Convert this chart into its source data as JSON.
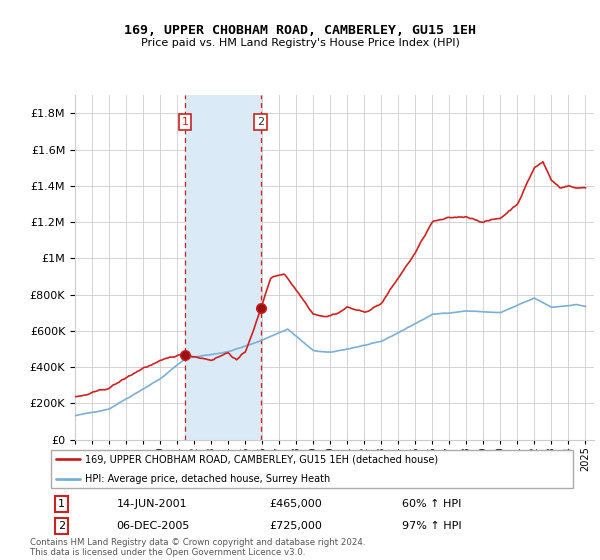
{
  "title": "169, UPPER CHOBHAM ROAD, CAMBERLEY, GU15 1EH",
  "subtitle": "Price paid vs. HM Land Registry's House Price Index (HPI)",
  "legend_line1": "169, UPPER CHOBHAM ROAD, CAMBERLEY, GU15 1EH (detached house)",
  "legend_line2": "HPI: Average price, detached house, Surrey Heath",
  "transaction1_date": "14-JUN-2001",
  "transaction1_price": "£465,000",
  "transaction1_hpi": "60% ↑ HPI",
  "transaction2_date": "06-DEC-2005",
  "transaction2_price": "£725,000",
  "transaction2_hpi": "97% ↑ HPI",
  "footnote": "Contains HM Land Registry data © Crown copyright and database right 2024.\nThis data is licensed under the Open Government Licence v3.0.",
  "hpi_color": "#7bafd4",
  "price_color": "#cc2222",
  "vline_color": "#cc2222",
  "highlight_color": "#daeaf7",
  "t1_year": 2001.46,
  "t2_year": 2005.92,
  "t1_price": 465000,
  "t2_price": 725000,
  "ylim_top": 1900000,
  "ylim_bottom": 0,
  "xmin": 1995,
  "xmax": 2025.5
}
